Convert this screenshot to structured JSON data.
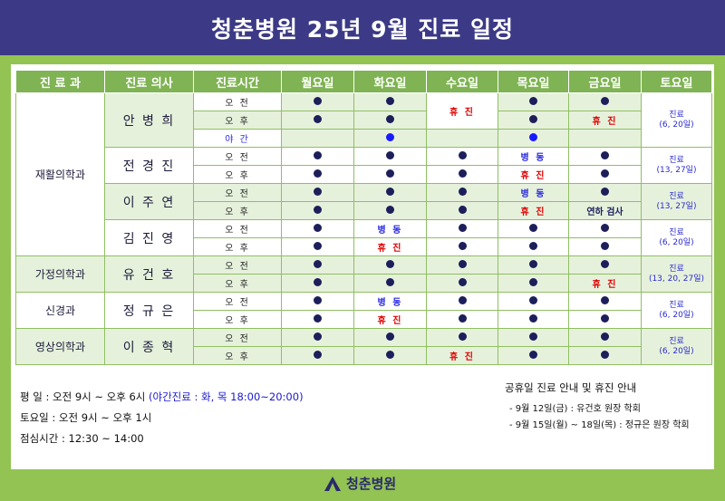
{
  "title": "청춘병원 25년 9월 진료 일정",
  "headers": [
    "진 료 과",
    "진료 의사",
    "진료시간",
    "월요일",
    "화요일",
    "수요일",
    "목요일",
    "금요일",
    "토요일"
  ],
  "labels": {
    "am": "오 전",
    "pm": "오 후",
    "night": "야 간",
    "off": "휴 진",
    "ward": "병 동",
    "exam": "연하 검사"
  },
  "departments": {
    "rehab": "재활의학과",
    "family": "가정의학과",
    "neuro": "신경과",
    "radio": "영상의학과"
  },
  "doctors": {
    "d1": {
      "name": "안 병 희",
      "sat": "진료",
      "sat_dates": "(6, 20일)"
    },
    "d2": {
      "name": "전 경 진",
      "sat": "진료",
      "sat_dates": "(13, 27일)"
    },
    "d3": {
      "name": "이 주 연",
      "sat": "진료",
      "sat_dates": "(13, 27일)"
    },
    "d4": {
      "name": "김 진 영",
      "sat": "진료",
      "sat_dates": "(6, 20일)"
    },
    "d5": {
      "name": "유 건 호",
      "sat": "진료",
      "sat_dates": "(13, 20, 27일)"
    },
    "d6": {
      "name": "정 규 은",
      "sat": "진료",
      "sat_dates": "(6, 20일)"
    },
    "d7": {
      "name": "이 종 혁",
      "sat": "진료",
      "sat_dates": "(6, 20일)"
    }
  },
  "hours": {
    "weekday_prefix": "평    일 : 오전 9시 ~ 오후 6시 ",
    "weekday_night": "(야간진료 : 화, 목 18:00~20:00)",
    "saturday": "토요일 : 오전 9시 ~ 오후 1시",
    "lunch": "점심시간 : 12:30 ~ 14:00"
  },
  "notice": {
    "title": "공휴일 진료 안내 및 휴진 안내",
    "items": [
      "- 9월 12일(금) : 유건호 원장 학회",
      "- 9월 15일(월) ~ 18일(목) : 정규은 원장 학회"
    ]
  },
  "logo_text": "청춘병원",
  "colors": {
    "title_bg": "#3c3a86",
    "frame": "#92c353",
    "header": "#7fb353",
    "dot": "#1c1f5a",
    "off": "#e00000",
    "ward": "#2a2ae0"
  }
}
